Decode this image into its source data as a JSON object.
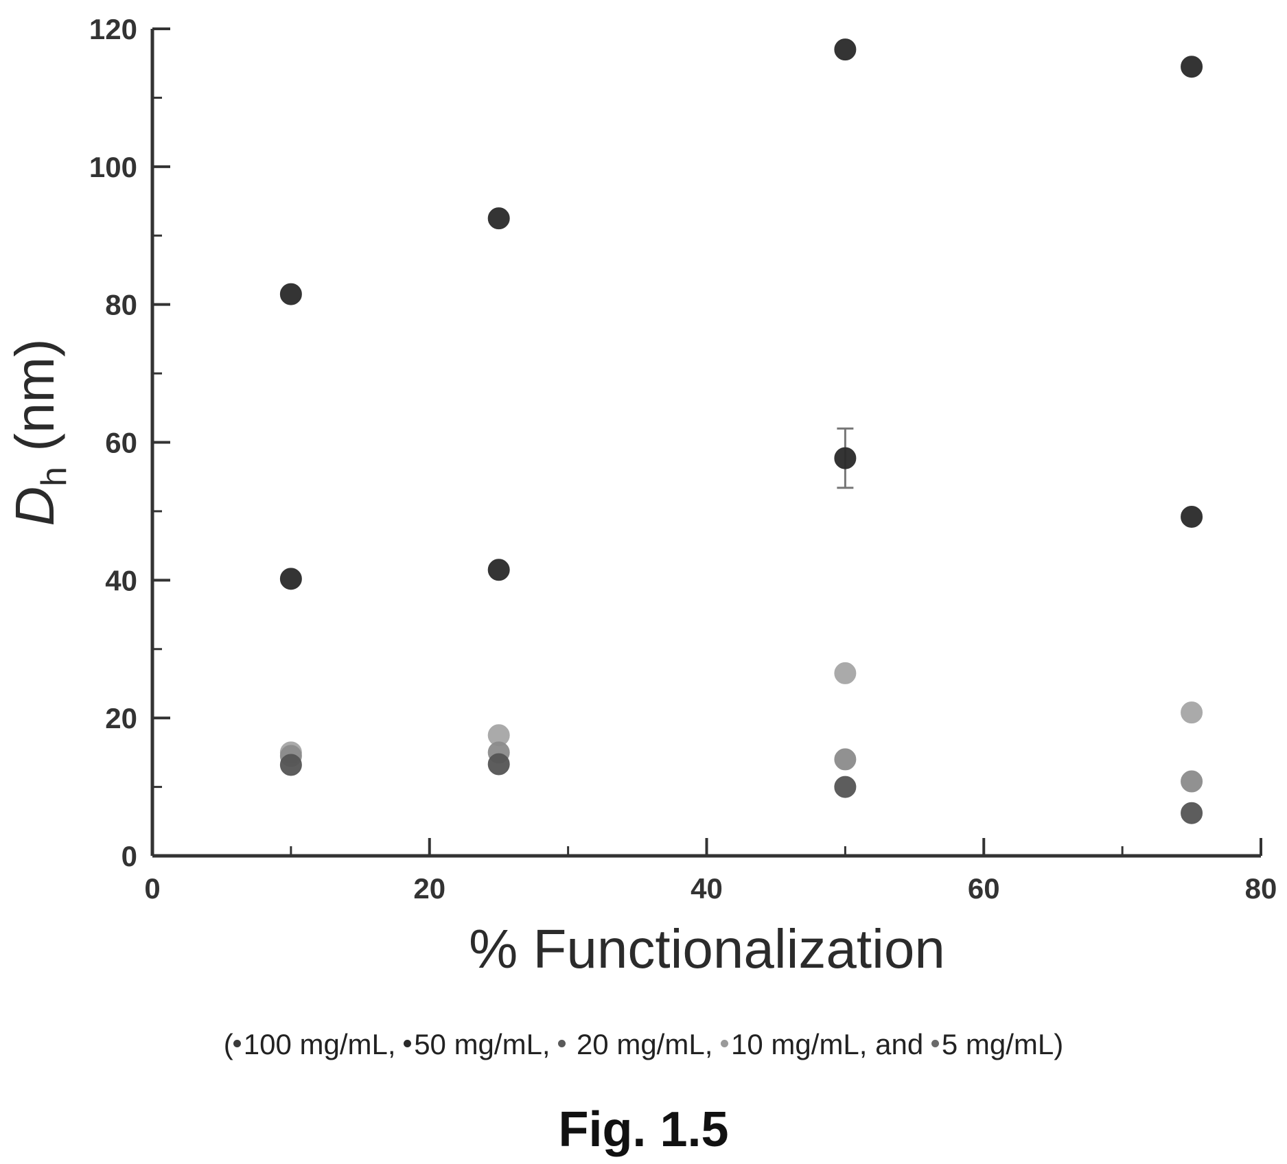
{
  "chart_data": {
    "type": "scatter",
    "xlabel": "% Functionalization",
    "ylabel_main": "D",
    "ylabel_sub": "h",
    "ylabel_unit": " (nm)",
    "xlim": [
      0,
      80
    ],
    "ylim": [
      0,
      120
    ],
    "x_ticks": [
      0,
      20,
      40,
      60,
      80
    ],
    "y_ticks": [
      0,
      20,
      40,
      60,
      80,
      100,
      120
    ],
    "x_minor_ticks": [
      10,
      30,
      50,
      70
    ],
    "y_minor_ticks": [
      10,
      30,
      50,
      70,
      90,
      110
    ],
    "grid": false,
    "legend_placement": "bottom",
    "series": [
      {
        "name": "100 mg/mL",
        "color": "#2a2a2a",
        "points": [
          {
            "x": 10,
            "y": 81.5
          },
          {
            "x": 25,
            "y": 92.5
          },
          {
            "x": 50,
            "y": 117.0
          },
          {
            "x": 75,
            "y": 114.5
          }
        ]
      },
      {
        "name": "50 mg/mL",
        "color": "#2a2a2a",
        "points": [
          {
            "x": 10,
            "y": 40.2
          },
          {
            "x": 25,
            "y": 41.5
          },
          {
            "x": 50,
            "y": 57.7,
            "error": 4.3
          },
          {
            "x": 75,
            "y": 49.2
          }
        ]
      },
      {
        "name": "20 mg/mL",
        "color": "#555555",
        "points": [
          {
            "x": 10,
            "y": 13.2
          },
          {
            "x": 25,
            "y": 13.3
          },
          {
            "x": 50,
            "y": 10.0
          },
          {
            "x": 75,
            "y": 6.2
          }
        ]
      },
      {
        "name": "10 mg/mL",
        "color": "#8c8c8c",
        "points": [
          {
            "x": 10,
            "y": 14.5
          },
          {
            "x": 25,
            "y": 15.0
          },
          {
            "x": 50,
            "y": 14.0
          },
          {
            "x": 75,
            "y": 10.8
          }
        ]
      },
      {
        "name": "5 mg/mL",
        "color": "#a6a6a6",
        "points": [
          {
            "x": 10,
            "y": 15.0
          },
          {
            "x": 25,
            "y": 17.5
          },
          {
            "x": 50,
            "y": 26.5
          },
          {
            "x": 75,
            "y": 20.8
          }
        ]
      }
    ]
  },
  "legend": {
    "open": "(",
    "items": [
      {
        "label": "100 mg/mL, ",
        "color": "#3a3a3a"
      },
      {
        "label": "50 mg/mL, ",
        "color": "#2a2a2a"
      },
      {
        "label": " 20 mg/mL, ",
        "color": "#5a5a5a"
      },
      {
        "label": "10 mg/mL, and ",
        "color": "#9a9a9a"
      },
      {
        "label": "5 mg/mL",
        "color": "#6a6a6a"
      }
    ],
    "close": ")"
  },
  "figure_label": "Fig. 1.5"
}
